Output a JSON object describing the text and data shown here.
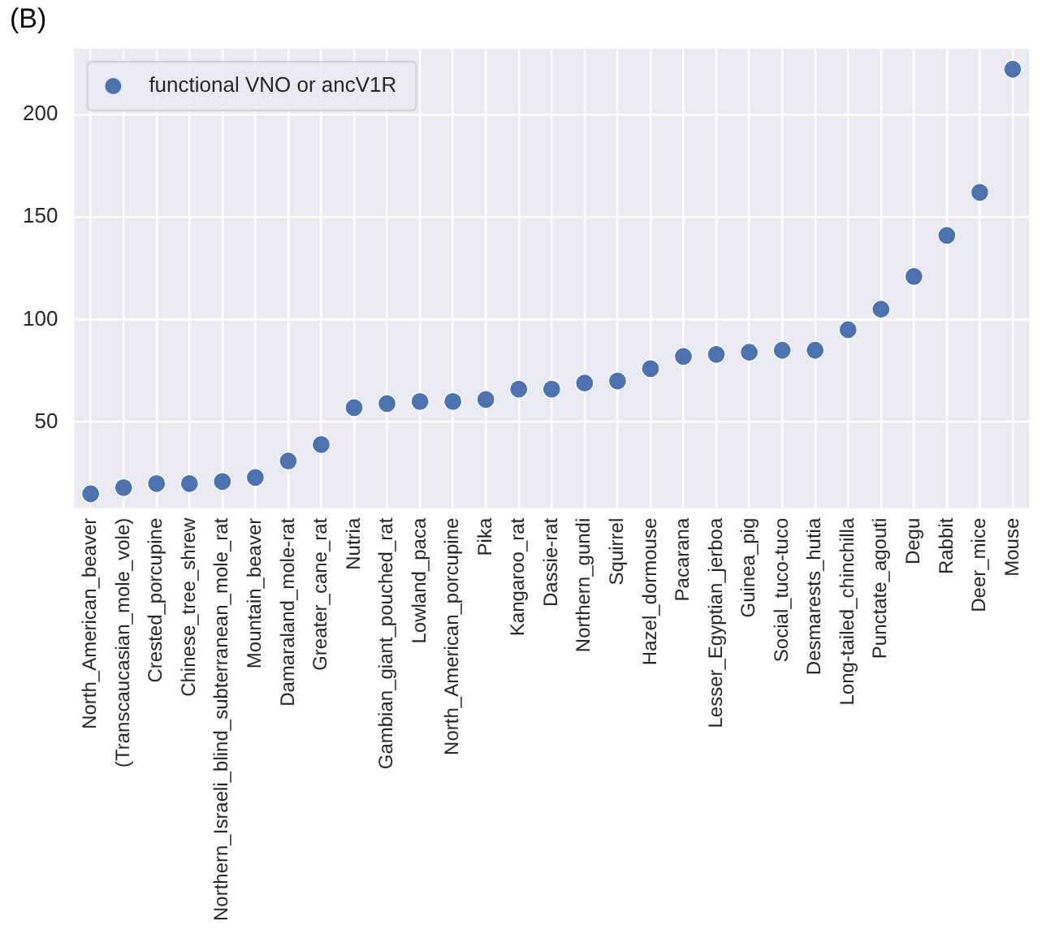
{
  "chart_data": {
    "type": "scatter",
    "annotations": [
      "(B)"
    ],
    "categories": [
      "North_American_beaver",
      "(Transcaucasian_mole_vole)",
      "Crested_porcupine",
      "Chinese_tree_shrew",
      "Northern_Israeli_blind_subterranean_mole_rat",
      "Mountain_beaver",
      "Damaraland_mole-rat",
      "Greater_cane_rat",
      "Nutria",
      "Gambian_giant_pouched_rat",
      "Lowland_paca",
      "North_American_porcupine",
      "Pika",
      "Kangaroo_rat",
      "Dassie-rat",
      "Northern_gundi",
      "Squirrel",
      "Hazel_dormouse",
      "Pacarana",
      "Lesser_Egyptian_jerboa",
      "Guinea_pig",
      "Social_tuco-tuco",
      "Desmarests_hutia",
      "Long-tailed_chinchilla",
      "Punctate_agouti",
      "Degu",
      "Rabbit",
      "Deer_mice",
      "Mouse"
    ],
    "series": [
      {
        "name": "functional VNO or ancV1R",
        "color": "#4c72b0",
        "values": [
          15,
          18,
          20,
          20,
          21,
          23,
          31,
          39,
          57,
          59,
          60,
          60,
          61,
          66,
          66,
          69,
          70,
          76,
          82,
          83,
          84,
          85,
          85,
          95,
          105,
          121,
          141,
          162,
          222
        ]
      }
    ],
    "ylim": [
      8,
      232
    ],
    "yticks": [
      50,
      100,
      150,
      200
    ],
    "grid": true,
    "legend": "top left",
    "marker": "circle"
  }
}
